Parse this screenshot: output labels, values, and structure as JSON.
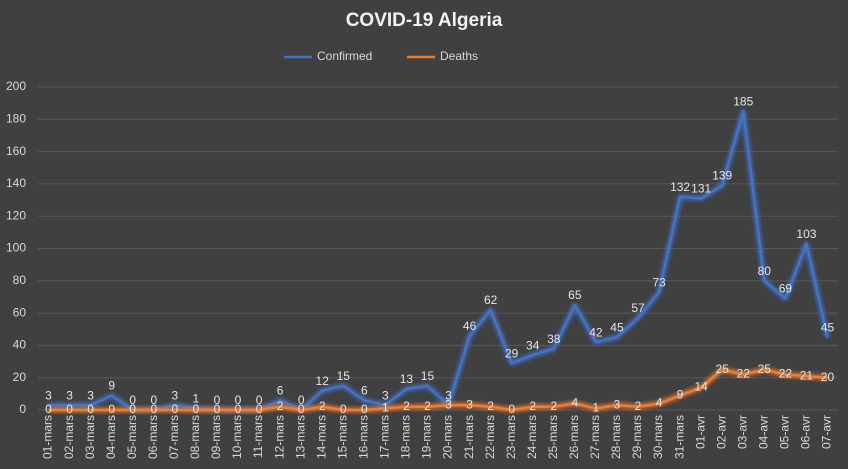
{
  "chart_data": {
    "type": "line",
    "title": "COVID-19 Algeria",
    "categories": [
      "01-mars",
      "02-mars",
      "03-mars",
      "04-mars",
      "05-mars",
      "06-mars",
      "07-mars",
      "08-mars",
      "09-mars",
      "10-mars",
      "11-mars",
      "12-mars",
      "13-mars",
      "14-mars",
      "15-mars",
      "16-mars",
      "17-mars",
      "18-mars",
      "19-mars",
      "20-mars",
      "21-mars",
      "22-mars",
      "23-mars",
      "24-mars",
      "25-mars",
      "26-mars",
      "27-mars",
      "28-mars",
      "29-mars",
      "30-mars",
      "31-mars",
      "01-avr",
      "02-avr",
      "03-avr",
      "04-avr",
      "05-avr",
      "06-avr",
      "07-avr"
    ],
    "series": [
      {
        "name": "Confirmed",
        "color": "#4472c4",
        "values": [
          3,
          3,
          3,
          9,
          0,
          0,
          3,
          1,
          0,
          0,
          0,
          6,
          0,
          12,
          15,
          6,
          3,
          13,
          15,
          3,
          46,
          62,
          29,
          34,
          38,
          65,
          42,
          45,
          57,
          73,
          132,
          131,
          139,
          185,
          80,
          69,
          103,
          45
        ]
      },
      {
        "name": "Deaths",
        "color": "#ed7d31",
        "values": [
          0,
          0,
          0,
          0,
          0,
          0,
          0,
          0,
          0,
          0,
          0,
          2,
          0,
          2,
          0,
          0,
          1,
          2,
          2,
          3,
          3,
          2,
          0,
          2,
          2,
          4,
          1,
          3,
          2,
          4,
          9,
          14,
          25,
          22,
          25,
          22,
          21,
          20
        ]
      }
    ],
    "ylim": [
      0,
      200
    ],
    "yticks": [
      0,
      20,
      40,
      60,
      80,
      100,
      120,
      140,
      160,
      180,
      200
    ],
    "grid": true,
    "legend_position": "top"
  }
}
